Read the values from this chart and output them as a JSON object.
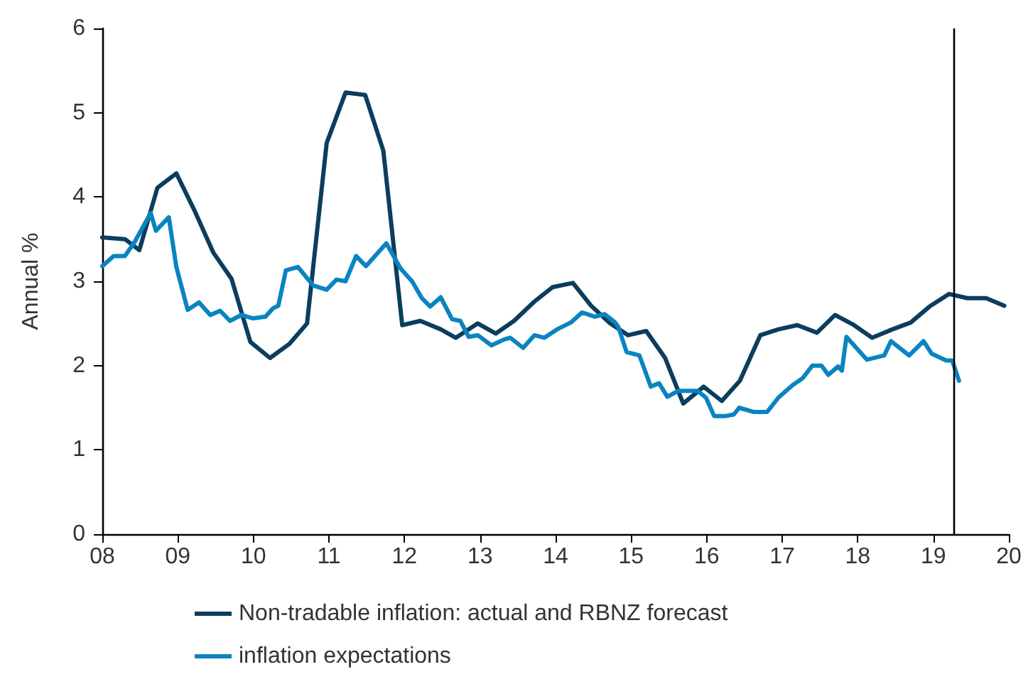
{
  "chart_data": {
    "type": "line",
    "ylabel": "Annual %",
    "xlim": [
      2008,
      2020
    ],
    "ylim": [
      0,
      6
    ],
    "xticks": [
      {
        "value": 2008,
        "label": "08"
      },
      {
        "value": 2009,
        "label": "09"
      },
      {
        "value": 2010,
        "label": "10"
      },
      {
        "value": 2011,
        "label": "11"
      },
      {
        "value": 2012,
        "label": "12"
      },
      {
        "value": 2013,
        "label": "13"
      },
      {
        "value": 2014,
        "label": "14"
      },
      {
        "value": 2015,
        "label": "15"
      },
      {
        "value": 2016,
        "label": "16"
      },
      {
        "value": 2017,
        "label": "17"
      },
      {
        "value": 2018,
        "label": "18"
      },
      {
        "value": 2019,
        "label": "19"
      },
      {
        "value": 2020,
        "label": "20"
      }
    ],
    "yticks": [
      0,
      1,
      2,
      3,
      4,
      5,
      6
    ],
    "grid": false,
    "legend": "bottom",
    "marker": "none",
    "line_style": "solid",
    "ref_lines": [
      {
        "axis": "x",
        "value": 2019.27,
        "color": "#000000"
      }
    ],
    "series": [
      {
        "name": "Non-tradable inflation: actual and RBNZ forecast",
        "color": "#0b3d5e",
        "x": [
          2008,
          2008.3,
          2008.49,
          2008.73,
          2008.98,
          2009.22,
          2009.47,
          2009.71,
          2009.96,
          2010.22,
          2010.48,
          2010.71,
          2010.97,
          2011.22,
          2011.48,
          2011.72,
          2011.97,
          2012.21,
          2012.48,
          2012.68,
          2012.97,
          2013.21,
          2013.45,
          2013.72,
          2013.96,
          2014.23,
          2014.47,
          2014.71,
          2014.96,
          2015.2,
          2015.45,
          2015.69,
          2015.96,
          2016.2,
          2016.44,
          2016.71,
          2016.95,
          2017.2,
          2017.46,
          2017.7,
          2017.95,
          2018.19,
          2018.46,
          2018.7,
          2018.95,
          2019.21,
          2019.45,
          2019.7,
          2019.94
        ],
        "values": [
          3.52,
          3.5,
          3.37,
          4.11,
          4.28,
          3.84,
          3.34,
          3.03,
          2.28,
          2.09,
          2.26,
          2.5,
          4.64,
          5.24,
          5.21,
          4.55,
          2.48,
          2.53,
          2.43,
          2.33,
          2.5,
          2.38,
          2.53,
          2.76,
          2.93,
          2.98,
          2.71,
          2.51,
          2.36,
          2.41,
          2.09,
          1.55,
          1.75,
          1.58,
          1.82,
          2.36,
          2.43,
          2.48,
          2.39,
          2.6,
          2.48,
          2.33,
          2.43,
          2.51,
          2.7,
          2.85,
          2.8,
          2.8,
          2.71
        ]
      },
      {
        "name": "inflation expectations",
        "color": "#0a84c1",
        "x": [
          2008,
          2008.15,
          2008.3,
          2008.43,
          2008.64,
          2008.71,
          2008.88,
          2008.98,
          2009.13,
          2009.28,
          2009.43,
          2009.56,
          2009.69,
          2009.84,
          2009.99,
          2010.16,
          2010.26,
          2010.33,
          2010.43,
          2010.59,
          2010.79,
          2010.97,
          2011.1,
          2011.22,
          2011.36,
          2011.49,
          2011.76,
          2011.95,
          2012.1,
          2012.23,
          2012.34,
          2012.48,
          2012.63,
          2012.74,
          2012.85,
          2012.97,
          2013.15,
          2013.32,
          2013.4,
          2013.57,
          2013.72,
          2013.85,
          2014.02,
          2014.2,
          2014.35,
          2014.52,
          2014.65,
          2014.79,
          2014.83,
          2014.94,
          2015.11,
          2015.26,
          2015.37,
          2015.48,
          2015.62,
          2015.75,
          2015.88,
          2015.99,
          2016.1,
          2016.24,
          2016.36,
          2016.43,
          2016.62,
          2016.8,
          2016.95,
          2017.14,
          2017.27,
          2017.4,
          2017.52,
          2017.61,
          2017.74,
          2017.79,
          2017.85,
          2018.12,
          2018.35,
          2018.44,
          2018.68,
          2018.87,
          2018.98,
          2019.17,
          2019.25,
          2019.34
        ],
        "values": [
          3.18,
          3.3,
          3.3,
          3.47,
          3.81,
          3.6,
          3.76,
          3.17,
          2.66,
          2.75,
          2.6,
          2.65,
          2.53,
          2.6,
          2.56,
          2.58,
          2.68,
          2.71,
          3.13,
          3.17,
          2.95,
          2.9,
          3.02,
          3.0,
          3.3,
          3.18,
          3.45,
          3.15,
          3.0,
          2.8,
          2.7,
          2.81,
          2.55,
          2.53,
          2.34,
          2.36,
          2.24,
          2.31,
          2.33,
          2.21,
          2.36,
          2.33,
          2.43,
          2.51,
          2.63,
          2.58,
          2.61,
          2.51,
          2.46,
          2.16,
          2.12,
          1.75,
          1.79,
          1.63,
          1.7,
          1.7,
          1.7,
          1.62,
          1.4,
          1.4,
          1.42,
          1.5,
          1.45,
          1.45,
          1.62,
          1.77,
          1.85,
          2.0,
          2.0,
          1.89,
          1.99,
          1.94,
          2.34,
          2.07,
          2.12,
          2.29,
          2.12,
          2.29,
          2.14,
          2.06,
          2.06,
          1.82
        ]
      }
    ]
  }
}
